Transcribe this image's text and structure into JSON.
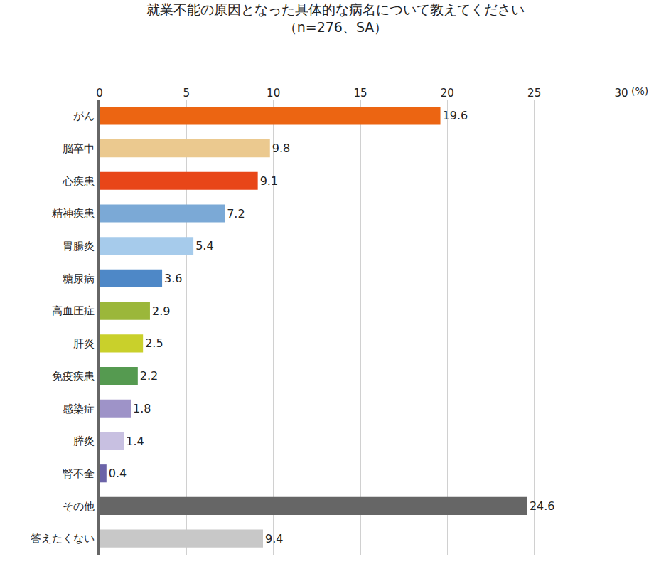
{
  "chart_data": {
    "type": "bar",
    "orientation": "horizontal",
    "title": "就業不能の原因となった具体的な病名について教えてください",
    "subtitle": "（n=276、SA）",
    "x_label": "(%)",
    "categories": [
      "がん",
      "脳卒中",
      "心疾患",
      "精神疾患",
      "胃腸炎",
      "糖尿病",
      "高血圧症",
      "肝炎",
      "免疫疾患",
      "感染症",
      "膵炎",
      "腎不全",
      "その他",
      "答えたくない"
    ],
    "values": [
      19.6,
      9.8,
      9.1,
      7.2,
      5.4,
      3.6,
      2.9,
      2.5,
      2.2,
      1.8,
      1.4,
      0.4,
      24.6,
      9.4
    ],
    "colors": [
      "#ec6512",
      "#ebc98f",
      "#e84618",
      "#7ba9d6",
      "#a6cbeb",
      "#4e88c7",
      "#9bb73a",
      "#c9d02b",
      "#559a50",
      "#9e93c8",
      "#c8c0e1",
      "#6b63a8",
      "#666666",
      "#c8c8c8"
    ],
    "xlim": [
      0,
      30
    ],
    "xticks": [
      0,
      5,
      10,
      15,
      20,
      25,
      30
    ],
    "grid": true,
    "data_labels": true
  }
}
